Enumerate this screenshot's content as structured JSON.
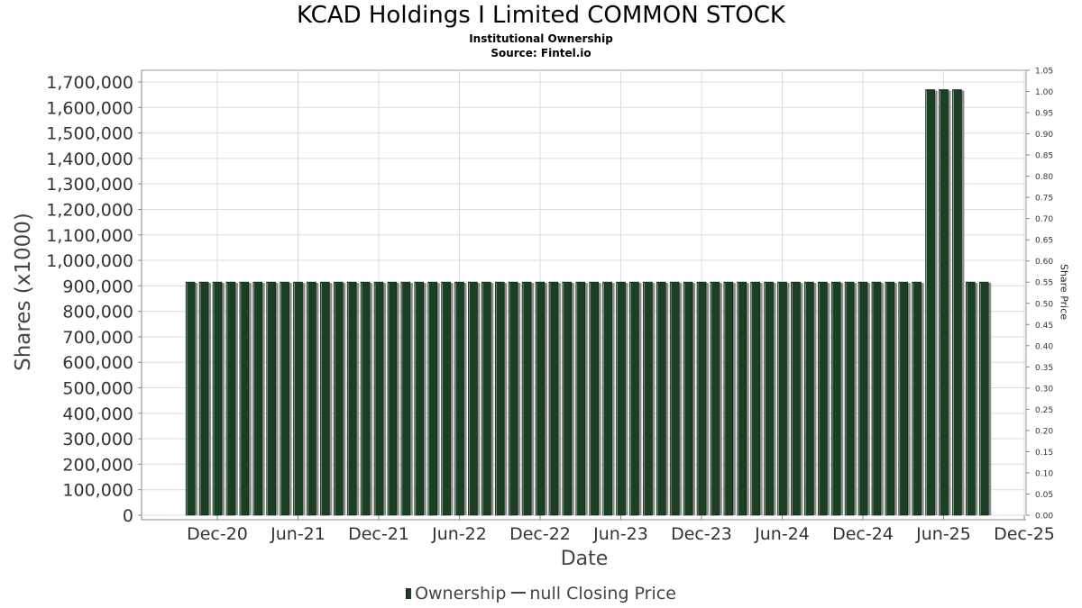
{
  "chart_data": {
    "type": "bar",
    "title": "KCAD Holdings I Limited COMMON STOCK",
    "subtitle": "Institutional Ownership",
    "source": "Source: Fintel.io",
    "xlabel": "Date",
    "ylabel": "Shares (x1000)",
    "y2label": "Share Price",
    "x_ticks": [
      "Dec-20",
      "Jun-21",
      "Dec-21",
      "Jun-22",
      "Dec-22",
      "Jun-23",
      "Dec-23",
      "Jun-24",
      "Dec-24",
      "Jun-25",
      "Dec-25"
    ],
    "y_ticks": [
      "0",
      "100,000",
      "200,000",
      "300,000",
      "400,000",
      "500,000",
      "600,000",
      "700,000",
      "800,000",
      "900,000",
      "1,000,000",
      "1,100,000",
      "1,200,000",
      "1,300,000",
      "1,400,000",
      "1,500,000",
      "1,600,000",
      "1,700,000"
    ],
    "y2_ticks": [
      "0.00",
      "0.05",
      "0.10",
      "0.15",
      "0.20",
      "0.25",
      "0.30",
      "0.35",
      "0.40",
      "0.45",
      "0.50",
      "0.55",
      "0.60",
      "0.65",
      "0.70",
      "0.75",
      "0.80",
      "0.85",
      "0.90",
      "0.95",
      "1.00",
      "1.05"
    ],
    "ylim": [
      0,
      1760000
    ],
    "y2lim": [
      0,
      1.05
    ],
    "grid": true,
    "legend_position": "bottom",
    "series": [
      {
        "name": "Ownership",
        "color": "#1a3f24",
        "x": [
          "2020-10-01",
          "2020-11-01",
          "2020-12-01",
          "2021-01-01",
          "2021-02-01",
          "2021-03-01",
          "2021-04-01",
          "2021-05-01",
          "2021-06-01",
          "2021-07-01",
          "2021-08-01",
          "2021-09-01",
          "2021-10-01",
          "2021-11-01",
          "2021-12-01",
          "2022-01-01",
          "2022-02-01",
          "2022-03-01",
          "2022-04-01",
          "2022-05-01",
          "2022-06-01",
          "2022-07-01",
          "2022-08-01",
          "2022-09-01",
          "2022-10-01",
          "2022-11-01",
          "2022-12-01",
          "2023-01-01",
          "2023-02-01",
          "2023-03-01",
          "2023-04-01",
          "2023-05-01",
          "2023-06-01",
          "2023-07-01",
          "2023-08-01",
          "2023-09-01",
          "2023-10-01",
          "2023-11-01",
          "2023-12-01",
          "2024-01-01",
          "2024-02-01",
          "2024-03-01",
          "2024-04-01",
          "2024-05-01",
          "2024-06-01",
          "2024-07-01",
          "2024-08-01",
          "2024-09-01",
          "2024-10-01",
          "2024-11-01",
          "2024-12-01",
          "2025-01-01",
          "2025-02-01",
          "2025-03-01",
          "2025-04-01",
          "2025-05-01",
          "2025-06-01",
          "2025-07-01",
          "2025-08-01",
          "2025-09-01"
        ],
        "values": [
          915000,
          915000,
          915000,
          915000,
          915000,
          915000,
          915000,
          915000,
          915000,
          915000,
          915000,
          915000,
          915000,
          915000,
          915000,
          915000,
          915000,
          915000,
          915000,
          915000,
          915000,
          915000,
          915000,
          915000,
          915000,
          915000,
          915000,
          915000,
          915000,
          915000,
          915000,
          915000,
          915000,
          915000,
          915000,
          915000,
          915000,
          915000,
          915000,
          915000,
          915000,
          915000,
          915000,
          915000,
          915000,
          915000,
          915000,
          915000,
          915000,
          915000,
          915000,
          915000,
          915000,
          915000,
          915000,
          1670000,
          1670000,
          1670000,
          915000,
          915000
        ]
      },
      {
        "name": "null Closing Price",
        "color": "#444444",
        "values": []
      }
    ]
  }
}
